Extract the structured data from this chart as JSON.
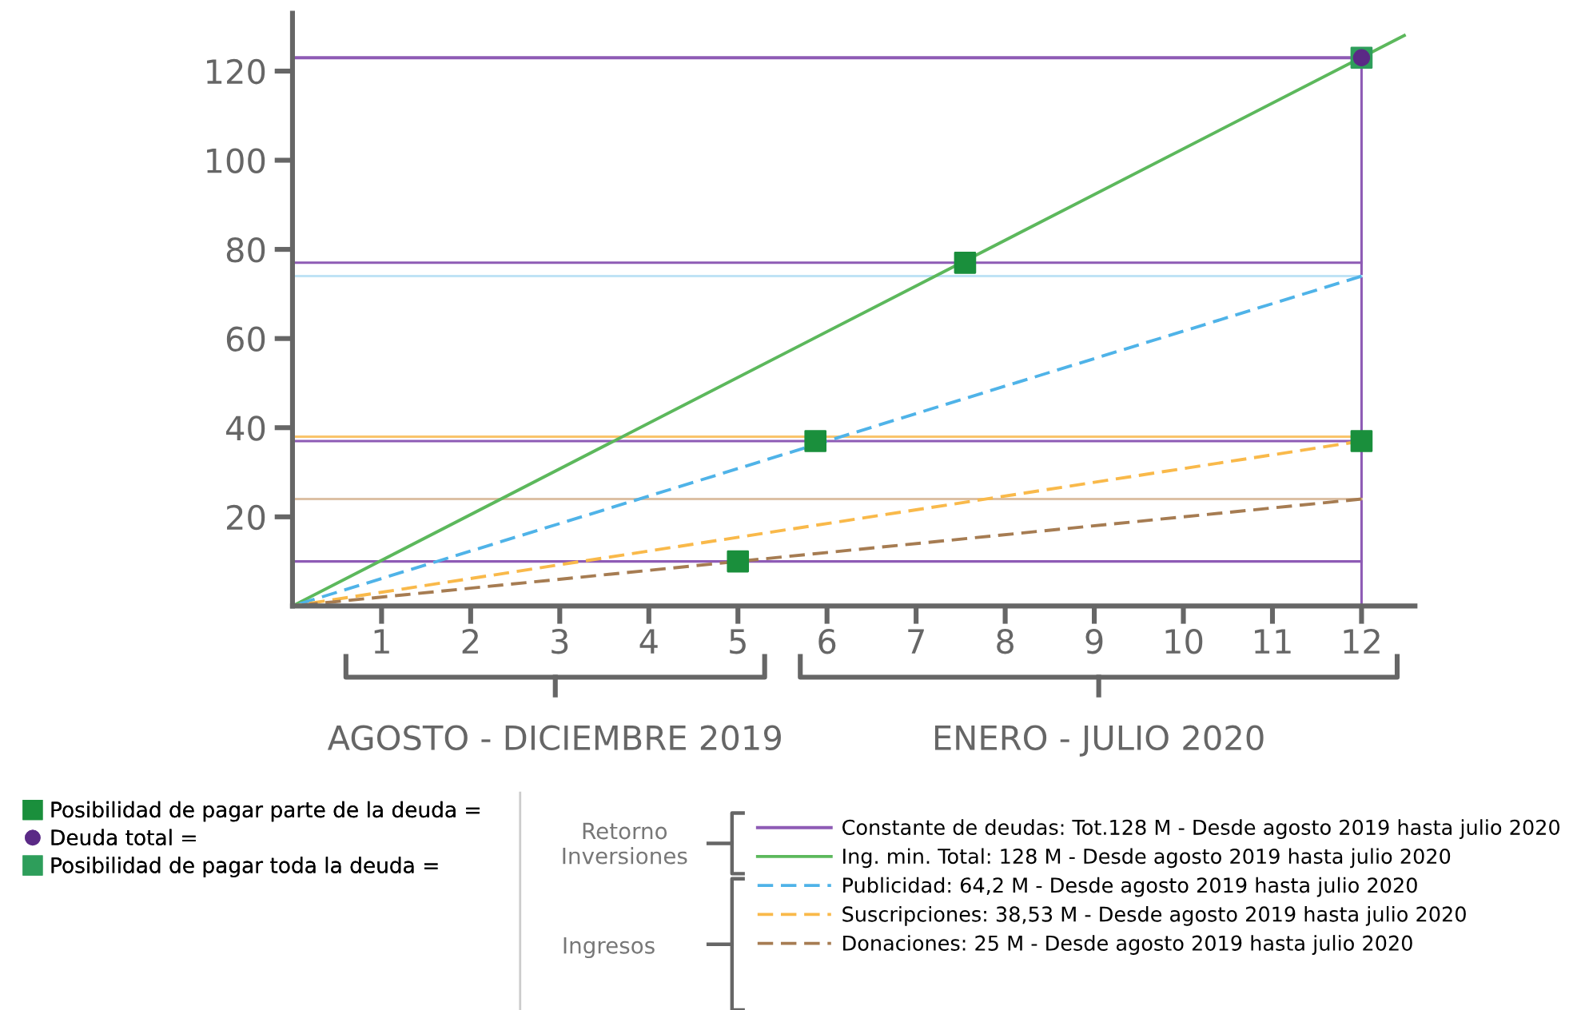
{
  "chart_data": {
    "type": "line",
    "xlim": [
      0,
      12.6
    ],
    "ylim": [
      0,
      133
    ],
    "xticks": [
      1,
      2,
      3,
      4,
      5,
      6,
      7,
      8,
      9,
      10,
      11,
      12
    ],
    "yticks": [
      20,
      40,
      60,
      80,
      100,
      120
    ],
    "grid": false,
    "legend": "bottom",
    "series": [
      {
        "name": "Constante de deudas: Tot.128 M - Desde agosto 2019 hasta julio 2020",
        "color": "#8e5bb5",
        "line_style": "solid",
        "x": [
          0,
          12
        ],
        "values": [
          123,
          123
        ]
      },
      {
        "color": "#8e5bb5",
        "line_style": "solid",
        "x": [
          0,
          12
        ],
        "values": [
          77,
          77
        ]
      },
      {
        "color": "#8e5bb5",
        "line_style": "solid",
        "x": [
          0,
          12
        ],
        "values": [
          37,
          37
        ]
      },
      {
        "color": "#8e5bb5",
        "line_style": "solid",
        "x": [
          0,
          12
        ],
        "values": [
          10,
          10
        ]
      },
      {
        "color": "#8e5bb5",
        "line_style": "solid",
        "x": [
          12,
          12
        ],
        "values": [
          0,
          123
        ]
      },
      {
        "color": "#bfe3f5",
        "line_style": "solid",
        "x": [
          0,
          12
        ],
        "values": [
          74,
          74
        ]
      },
      {
        "color": "#f9c46b",
        "line_style": "solid",
        "x": [
          0,
          12
        ],
        "values": [
          38,
          38
        ]
      },
      {
        "color": "#dcc0a4",
        "line_style": "solid",
        "x": [
          0,
          12
        ],
        "values": [
          24,
          24
        ]
      },
      {
        "name": "Ing. min. Total: 128 M - Desde agosto 2019 hasta julio 2020",
        "color": "#5cb85c",
        "line_style": "solid",
        "x": [
          0,
          12.48
        ],
        "values": [
          0,
          128
        ]
      },
      {
        "name": "Publicidad: 64,2 M - Desde agosto 2019 hasta julio 2020",
        "color": "#4fb3e8",
        "line_style": "dashed",
        "x": [
          0,
          12
        ],
        "values": [
          0,
          74
        ]
      },
      {
        "name": "Suscripciones: 38,53 M - Desde agosto 2019 hasta julio 2020",
        "color": "#f9b94a",
        "line_style": "dashed",
        "x": [
          0,
          12
        ],
        "values": [
          0,
          37
        ]
      },
      {
        "name": "Donaciones: 25 M - Desde agosto 2019 hasta julio 2020",
        "color": "#a67c52",
        "line_style": "dashed",
        "x": [
          0,
          12
        ],
        "values": [
          0,
          24
        ]
      },
      {
        "type": "scatter",
        "name": "Posibilidad de pagar toda la deuda =",
        "color": "#2e9e5b",
        "marker": "square",
        "x": [
          12
        ],
        "values": [
          123
        ]
      },
      {
        "type": "scatter",
        "name": "Deuda total =",
        "color": "#5b2a86",
        "marker": "circle",
        "x": [
          12
        ],
        "values": [
          123
        ]
      },
      {
        "type": "scatter",
        "name": "Posibilidad de pagar parte de la deuda =",
        "color": "#1a8f3c",
        "marker": "square",
        "x": [
          5,
          5.87,
          7.55,
          12
        ],
        "values": [
          10,
          37,
          77,
          37
        ]
      }
    ],
    "annotations": [
      "AGOSTO - DICIEMBRE 2019",
      "ENERO - JULIO 2020",
      "Retorno\nInversiones",
      "Ingresos"
    ]
  }
}
